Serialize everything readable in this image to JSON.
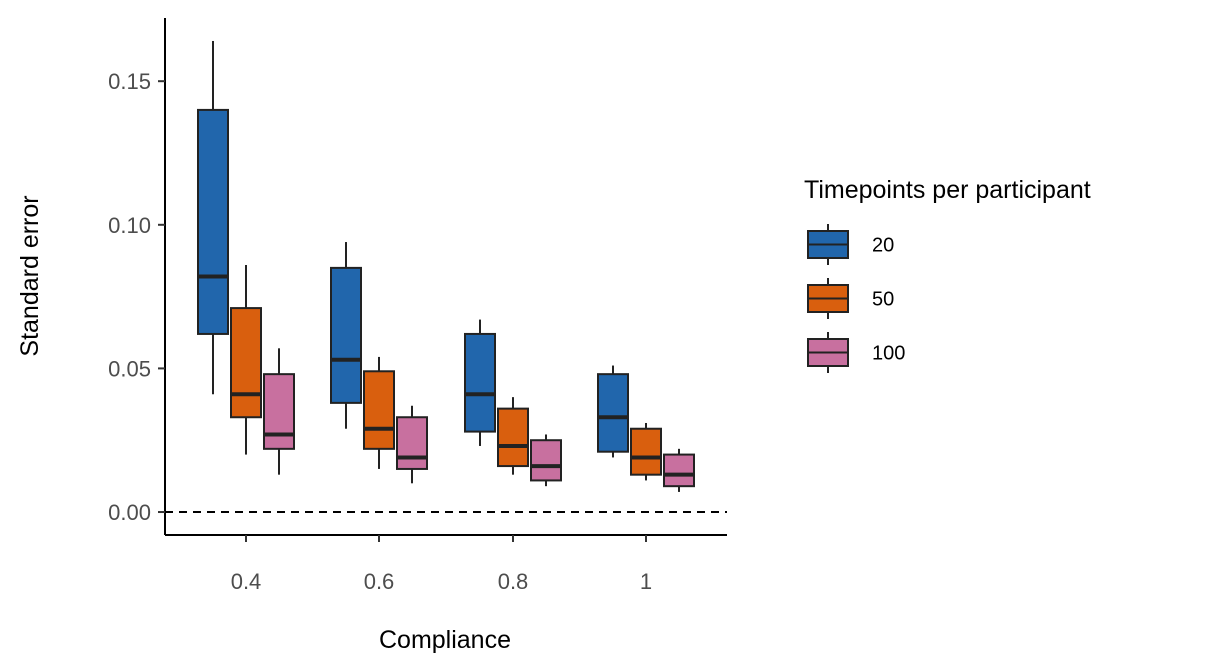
{
  "chart_data": {
    "type": "boxplot",
    "xlabel": "Compliance",
    "ylabel": "Standard error",
    "categories": [
      "0.4",
      "0.6",
      "0.8",
      "1"
    ],
    "ylim": [
      -0.008,
      0.172
    ],
    "yticks": [
      0.0,
      0.05,
      0.1,
      0.15
    ],
    "ytick_labels": [
      "0.00",
      "0.05",
      "0.10",
      "0.15"
    ],
    "reference_line": {
      "y": 0.0,
      "style": "dashed"
    },
    "grid": false,
    "legend": {
      "title": "Timepoints per participant",
      "position": "right"
    },
    "series": [
      {
        "name": "20",
        "color": "#2166ac",
        "boxes": [
          {
            "whisker_low": 0.041,
            "q1": 0.062,
            "median": 0.082,
            "q3": 0.14,
            "whisker_high": 0.164
          },
          {
            "whisker_low": 0.029,
            "q1": 0.038,
            "median": 0.053,
            "q3": 0.085,
            "whisker_high": 0.094
          },
          {
            "whisker_low": 0.023,
            "q1": 0.028,
            "median": 0.041,
            "q3": 0.062,
            "whisker_high": 0.067
          },
          {
            "whisker_low": 0.019,
            "q1": 0.021,
            "median": 0.033,
            "q3": 0.048,
            "whisker_high": 0.051
          }
        ]
      },
      {
        "name": "50",
        "color": "#d95f0e",
        "boxes": [
          {
            "whisker_low": 0.02,
            "q1": 0.033,
            "median": 0.041,
            "q3": 0.071,
            "whisker_high": 0.086
          },
          {
            "whisker_low": 0.015,
            "q1": 0.022,
            "median": 0.029,
            "q3": 0.049,
            "whisker_high": 0.054
          },
          {
            "whisker_low": 0.013,
            "q1": 0.016,
            "median": 0.023,
            "q3": 0.036,
            "whisker_high": 0.04
          },
          {
            "whisker_low": 0.011,
            "q1": 0.013,
            "median": 0.019,
            "q3": 0.029,
            "whisker_high": 0.031
          }
        ]
      },
      {
        "name": "100",
        "color": "#c8709f",
        "boxes": [
          {
            "whisker_low": 0.013,
            "q1": 0.022,
            "median": 0.027,
            "q3": 0.048,
            "whisker_high": 0.057
          },
          {
            "whisker_low": 0.01,
            "q1": 0.015,
            "median": 0.019,
            "q3": 0.033,
            "whisker_high": 0.037
          },
          {
            "whisker_low": 0.009,
            "q1": 0.011,
            "median": 0.016,
            "q3": 0.025,
            "whisker_high": 0.027
          },
          {
            "whisker_low": 0.007,
            "q1": 0.009,
            "median": 0.013,
            "q3": 0.02,
            "whisker_high": 0.022
          }
        ]
      }
    ]
  }
}
